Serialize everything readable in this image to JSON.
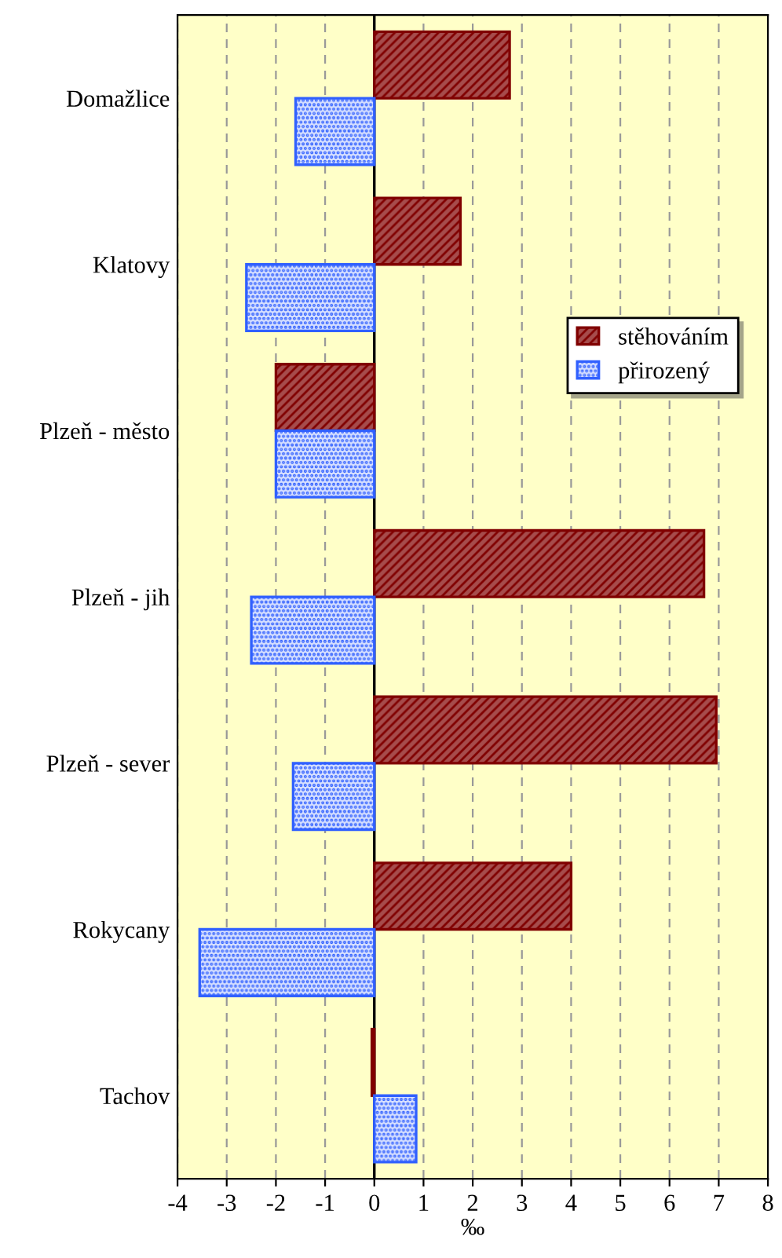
{
  "chart_data": {
    "type": "bar",
    "orientation": "horizontal",
    "xlabel": "‰",
    "categories": [
      "Domažlice",
      "Klatovy",
      "Plzeň - město",
      "Plzeň - jih",
      "Plzeň - sever",
      "Rokycany",
      "Tachov"
    ],
    "series": [
      {
        "name": "stěhováním",
        "color": "#800000",
        "values": [
          2.75,
          1.75,
          -2.0,
          6.7,
          6.95,
          4.0,
          -0.05
        ]
      },
      {
        "name": "přirozený",
        "color": "#3060ff",
        "values": [
          -1.6,
          -2.6,
          -2.0,
          -2.5,
          -1.65,
          -3.55,
          0.85
        ]
      }
    ],
    "xlim": [
      -4,
      8
    ],
    "xticks": [
      -4,
      -3,
      -2,
      -1,
      0,
      1,
      2,
      3,
      4,
      5,
      6,
      7,
      8
    ],
    "grid": "x",
    "legend": "upper right"
  }
}
